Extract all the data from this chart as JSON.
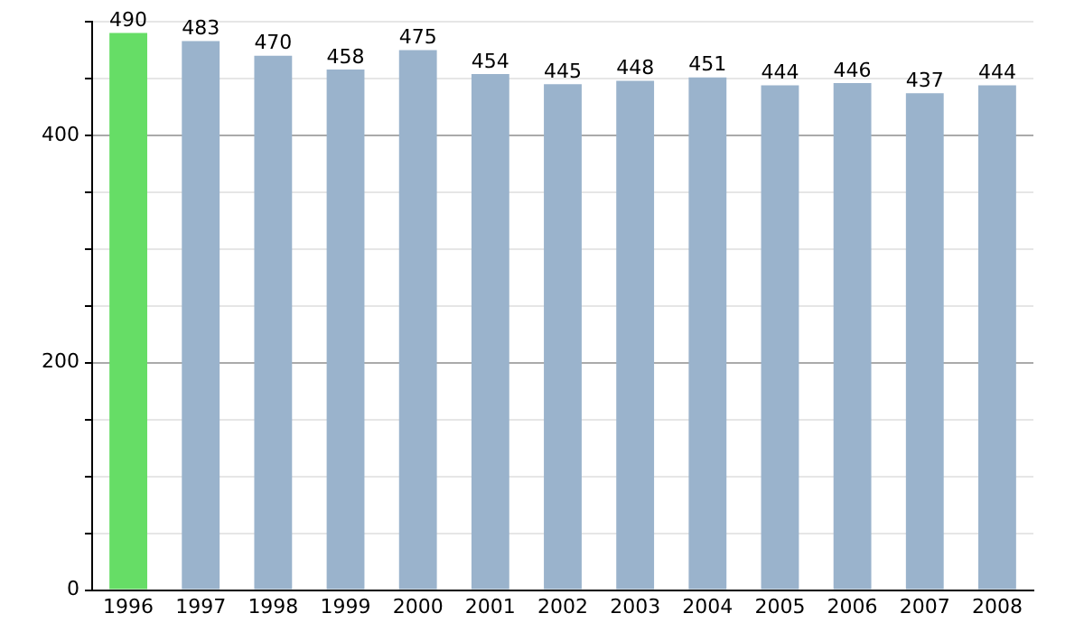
{
  "chart_data": {
    "type": "bar",
    "categories": [
      "1996",
      "1997",
      "1998",
      "1999",
      "2000",
      "2001",
      "2002",
      "2003",
      "2004",
      "2005",
      "2006",
      "2007",
      "2008"
    ],
    "values": [
      490,
      483,
      470,
      458,
      475,
      454,
      445,
      448,
      451,
      444,
      446,
      437,
      444
    ],
    "colors": [
      "#66dd66",
      "#9ab3cc",
      "#9ab3cc",
      "#9ab3cc",
      "#9ab3cc",
      "#9ab3cc",
      "#9ab3cc",
      "#9ab3cc",
      "#9ab3cc",
      "#9ab3cc",
      "#9ab3cc",
      "#9ab3cc",
      "#9ab3cc"
    ],
    "ylim": [
      0,
      500
    ],
    "yticks": [
      0,
      {
        "value": 50,
        "label": null
      },
      {
        "value": 100,
        "label": null
      },
      {
        "value": 150,
        "label": null
      },
      200,
      {
        "value": 250,
        "label": null
      },
      {
        "value": 300,
        "label": null
      },
      {
        "value": 350,
        "label": null
      },
      400,
      {
        "value": 450,
        "label": null
      },
      {
        "value": 500,
        "label": null
      }
    ],
    "grid": "y",
    "data_labels": true
  }
}
